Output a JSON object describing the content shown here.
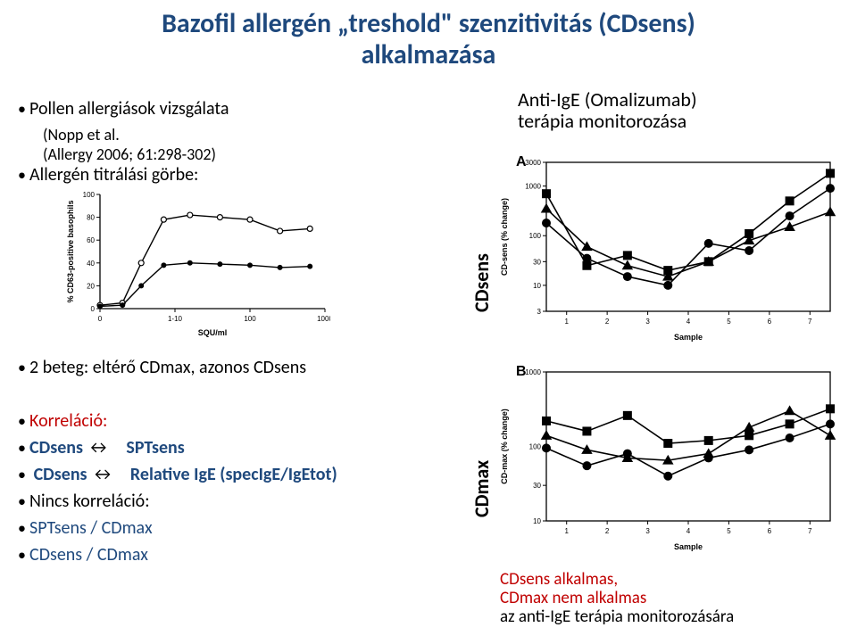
{
  "title": {
    "line1": "Bazofil allergén „treshold\" szenzitivitás (CDsens)",
    "line2": "alkalmazása",
    "color": "#1f497d",
    "fontsize": 30,
    "fontweight": "bold"
  },
  "left_top_bullets": [
    {
      "text": "Pollen allergiások  vizsgálata",
      "color": "#000000",
      "fontsize": 20
    },
    {
      "text": "(Nopp et al.",
      "color": "#000000",
      "fontsize": 18,
      "indent": true,
      "no_bullet": true
    },
    {
      "text": "(Allergy 2006; 61:298-302)",
      "color": "#000000",
      "fontsize": 18,
      "indent": true,
      "no_bullet": true
    },
    {
      "text": "Allergén titrálási görbe:",
      "color": "#000000",
      "fontsize": 20
    }
  ],
  "right_top_text": {
    "line1": "Anti-IgE (Omalizumab)",
    "line2": "terápia monitorozása",
    "color": "#000000",
    "fontsize": 22
  },
  "mid_left_bullet": {
    "text": "2 beteg: eltérő CDmax, azonos CDsens",
    "color": "#000000",
    "fontsize": 20
  },
  "lower_left": {
    "korrelacio_label": "Korreláció:",
    "korrelacio_color": "#c00000",
    "line1_left": "CDsens",
    "line1_arrow": "↔",
    "line1_right": "SPTsens",
    "line2_left": "CDsens",
    "line2_arrow": "↔",
    "line2_right": "Relative IgE (specIgE/IgEtot)",
    "nincs_label": "Nincs korreláció:",
    "nincs_color": "#000000",
    "line3": "SPTsens   /   CDmax",
    "line4": "CDsens   /   CDmax",
    "navy": "#1f497d",
    "fontsize": 20
  },
  "lower_right": {
    "line1_a": "CDsens alkalmas,",
    "line1_b": "CDmax nem alkalmas",
    "line2": "az anti-IgE terápia monitorozására",
    "color_cd": "#c00000",
    "color_main": "#000000",
    "fontsize": 19
  },
  "titration_chart": {
    "type": "line-scatter",
    "xlabel": "SQU/ml",
    "ylabel": "% CD63-positive basophils",
    "xticks": [
      "0",
      "1-10",
      "100",
      "1000"
    ],
    "yticks": [
      0,
      20,
      40,
      60,
      80,
      100
    ],
    "xlim": [
      0,
      3
    ],
    "ylim": [
      0,
      100
    ],
    "label_fontsize": 9,
    "tick_fontsize": 8,
    "background_color": "#ffffff",
    "axis_color": "#000000",
    "series": [
      {
        "name": "patient1",
        "marker": "circle-open",
        "color": "#000000",
        "points_x": [
          0,
          0.3,
          0.55,
          0.85,
          1.2,
          1.6,
          2.0,
          2.4,
          2.8
        ],
        "points_y": [
          3,
          5,
          40,
          78,
          82,
          80,
          78,
          68,
          70
        ]
      },
      {
        "name": "patient2",
        "marker": "circle-filled",
        "color": "#000000",
        "points_x": [
          0,
          0.3,
          0.55,
          0.85,
          1.2,
          1.6,
          2.0,
          2.4,
          2.8
        ],
        "points_y": [
          2,
          3,
          20,
          38,
          40,
          39,
          38,
          36,
          37
        ]
      }
    ]
  },
  "chart_a": {
    "panel_label": "A",
    "type": "log-line-scatter",
    "ylabel": "CD-sens (% change)",
    "rotated_big_label": "CDsens",
    "xlabel": "Sample",
    "xticks": [
      1,
      2,
      3,
      4,
      5,
      6,
      7
    ],
    "yticks": [
      3,
      10,
      30,
      100,
      1000,
      3000
    ],
    "ytop_label": "3000",
    "ylim_log": [
      3,
      3000
    ],
    "label_fontsize": 9,
    "tick_fontsize": 8,
    "background_color": "#ffffff",
    "axis_color": "#000000",
    "marker_size": 5,
    "line_width": 1.6,
    "series": [
      {
        "marker": "square",
        "values": [
          700,
          25,
          40,
          20,
          30,
          110,
          500,
          1800
        ]
      },
      {
        "marker": "triangle",
        "values": [
          350,
          60,
          25,
          15,
          30,
          80,
          150,
          300
        ]
      },
      {
        "marker": "circle",
        "values": [
          180,
          35,
          15,
          10,
          70,
          50,
          250,
          900
        ]
      }
    ],
    "note": "x index 0..7 plotted over ticks 1..7 area"
  },
  "chart_b": {
    "panel_label": "B",
    "type": "log-line-scatter",
    "ylabel": "CD-max (% change)",
    "rotated_big_label": "CDmax",
    "xlabel": "Sample",
    "xticks": [
      1,
      2,
      3,
      4,
      5,
      6,
      7
    ],
    "yticks": [
      10,
      30,
      100,
      1000
    ],
    "ylim_log": [
      10,
      1000
    ],
    "label_fontsize": 9,
    "tick_fontsize": 8,
    "background_color": "#ffffff",
    "axis_color": "#000000",
    "marker_size": 5,
    "line_width": 1.6,
    "series": [
      {
        "marker": "square",
        "values": [
          220,
          160,
          260,
          110,
          120,
          140,
          200,
          320
        ]
      },
      {
        "marker": "triangle",
        "values": [
          140,
          90,
          70,
          65,
          80,
          180,
          300,
          140
        ]
      },
      {
        "marker": "circle",
        "values": [
          95,
          55,
          80,
          40,
          70,
          90,
          130,
          200
        ]
      }
    ]
  }
}
